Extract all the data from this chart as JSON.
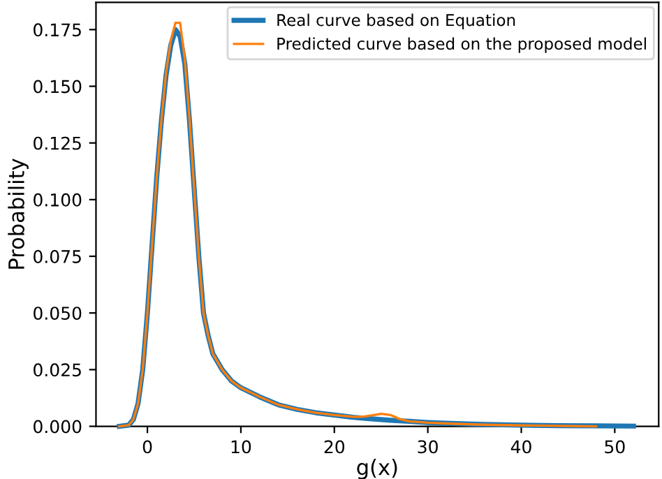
{
  "chart_data": {
    "type": "line",
    "xlabel": "g(x)",
    "ylabel": "Probability",
    "xlim": [
      -5.5,
      54.7
    ],
    "xticks": [
      0,
      10,
      20,
      30,
      40,
      50
    ],
    "ylim": [
      0,
      0.187
    ],
    "yticks": [
      {
        "value": 0,
        "label": "0.000"
      },
      {
        "value": 0.025,
        "label": "0.025"
      },
      {
        "value": 0.05,
        "label": "0.050"
      },
      {
        "value": 0.075,
        "label": "0.075"
      },
      {
        "value": 0.1,
        "label": "0.100"
      },
      {
        "value": 0.125,
        "label": "0.125"
      },
      {
        "value": 0.15,
        "label": "0.150"
      },
      {
        "value": 0.175,
        "label": "0.175"
      }
    ],
    "grid": false,
    "legend": "top right",
    "marker": "none",
    "line_style": "solid",
    "series": [
      {
        "name": "Real curve based on Equation",
        "color": "#1f77b4",
        "x": [
          -3,
          -2,
          -1.5,
          -1,
          -0.5,
          0,
          0.5,
          1,
          1.5,
          2,
          2.5,
          3,
          3.5,
          4,
          4.5,
          5,
          5.5,
          6,
          6.5,
          7,
          8,
          9,
          10,
          12,
          14,
          16,
          18,
          20,
          22,
          24,
          26,
          28,
          30,
          33,
          36,
          40,
          44,
          48,
          52
        ],
        "values": [
          0,
          0.0005,
          0.003,
          0.01,
          0.025,
          0.05,
          0.08,
          0.11,
          0.135,
          0.155,
          0.168,
          0.175,
          0.172,
          0.16,
          0.135,
          0.105,
          0.075,
          0.05,
          0.04,
          0.032,
          0.025,
          0.02,
          0.017,
          0.013,
          0.0095,
          0.0075,
          0.006,
          0.005,
          0.004,
          0.0033,
          0.0027,
          0.0022,
          0.0017,
          0.0012,
          0.0008,
          0.0005,
          0.0003,
          0.0002,
          0.0001
        ]
      },
      {
        "name": "Predicted curve based on the proposed model",
        "color": "#ff7f0e",
        "x": [
          -3,
          -2,
          -1.5,
          -1,
          -0.5,
          0,
          0.5,
          1,
          1.5,
          2,
          2.5,
          3,
          3.5,
          4,
          4.5,
          5,
          5.5,
          6,
          6.5,
          7,
          8,
          9,
          10,
          12,
          14,
          16,
          18,
          20,
          22,
          23,
          24,
          25,
          26,
          27,
          28,
          30,
          33,
          36,
          40,
          44,
          48
        ],
        "values": [
          0,
          0.0005,
          0.003,
          0.01,
          0.025,
          0.05,
          0.08,
          0.11,
          0.135,
          0.156,
          0.17,
          0.178,
          0.178,
          0.162,
          0.136,
          0.105,
          0.075,
          0.05,
          0.04,
          0.032,
          0.025,
          0.02,
          0.017,
          0.013,
          0.0095,
          0.0075,
          0.006,
          0.005,
          0.0042,
          0.0042,
          0.0048,
          0.0055,
          0.005,
          0.0032,
          0.0022,
          0.0016,
          0.0011,
          0.0007,
          0.0004,
          0.0002,
          0
        ]
      }
    ]
  }
}
